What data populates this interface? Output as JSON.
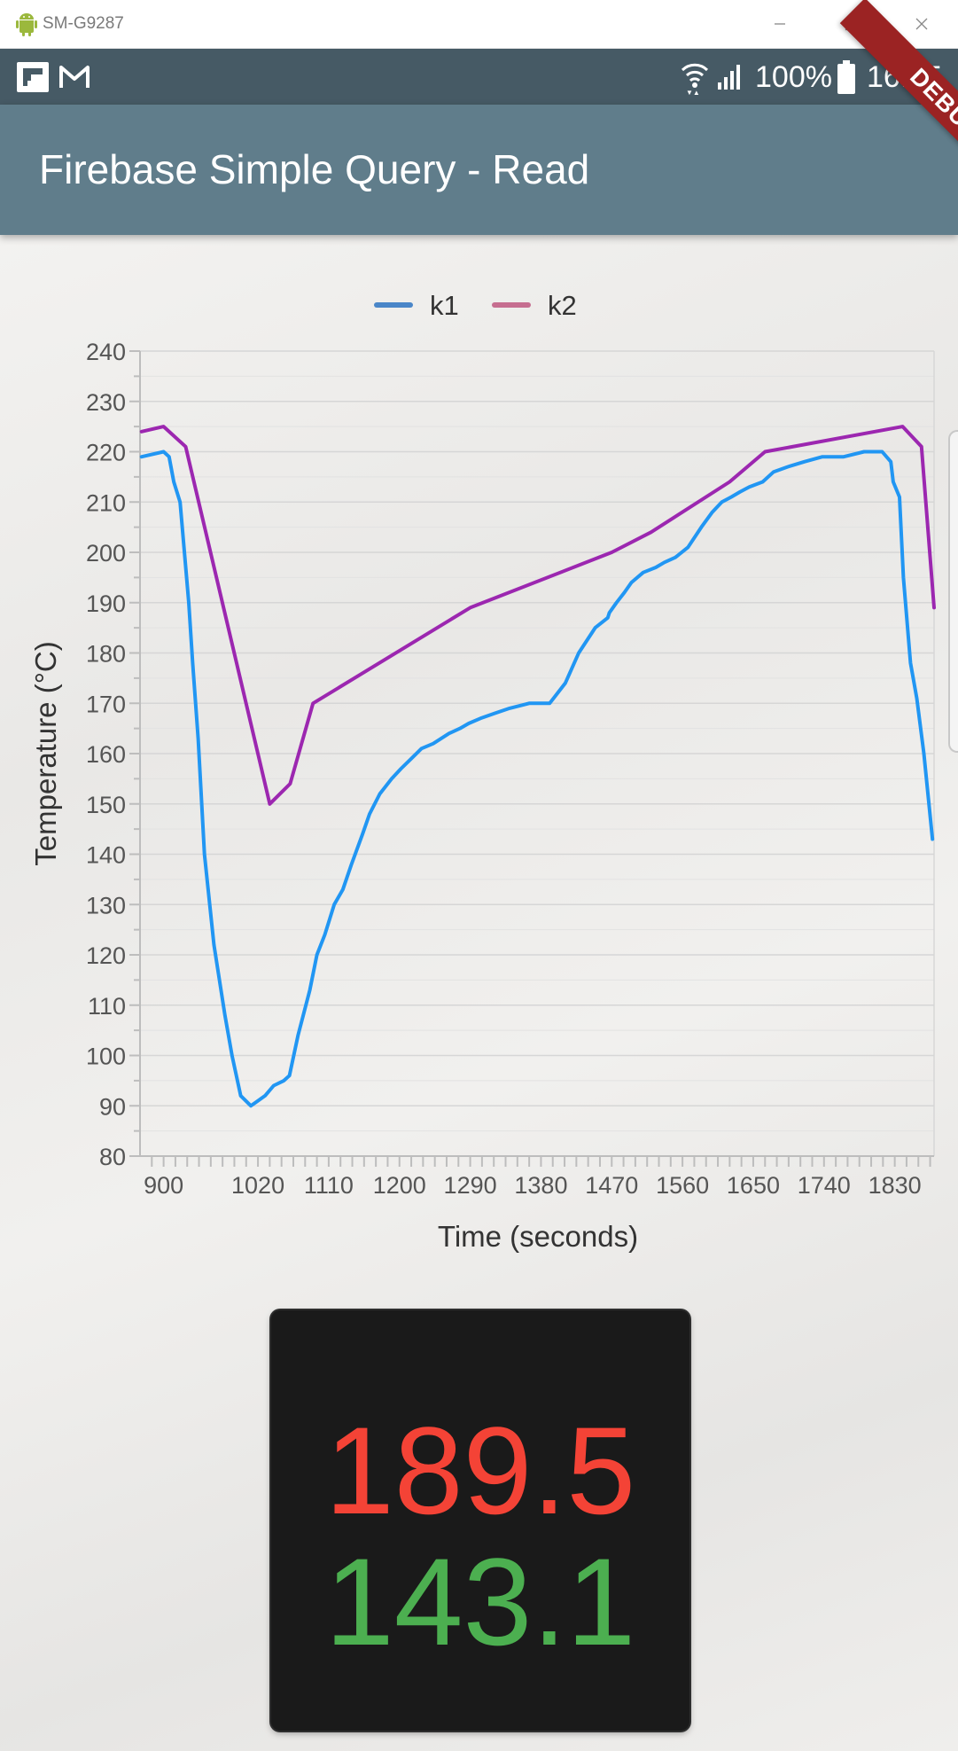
{
  "window": {
    "title": "SM-G9287"
  },
  "status_bar": {
    "battery": "100%",
    "time": "16:55"
  },
  "app_bar": {
    "title": "Firebase Simple Query - Read"
  },
  "debug_banner": "DEBUG",
  "chart_data": {
    "type": "line",
    "xlabel": "Time (seconds)",
    "ylabel": "Temperature (°C)",
    "xlim": [
      870,
      1880
    ],
    "ylim": [
      80,
      240
    ],
    "x_ticks": [
      900,
      1020,
      1110,
      1200,
      1290,
      1380,
      1470,
      1560,
      1650,
      1740,
      1830
    ],
    "y_ticks": [
      80,
      90,
      100,
      110,
      120,
      130,
      140,
      150,
      160,
      170,
      180,
      190,
      200,
      210,
      220,
      230,
      240
    ],
    "grid": true,
    "legend": "top-center",
    "series": [
      {
        "name": "k1",
        "color": "#2196f3",
        "legend_color": "#4a86c8",
        "x": [
          872,
          900,
          907,
          913,
          921,
          932,
          937,
          944,
          952,
          964,
          978,
          987,
          998,
          1011,
          1020,
          1029,
          1040,
          1053,
          1060,
          1071,
          1086,
          1095,
          1105,
          1117,
          1128,
          1139,
          1153,
          1162,
          1175,
          1190,
          1202,
          1215,
          1228,
          1243,
          1263,
          1277,
          1288,
          1303,
          1321,
          1340,
          1365,
          1391,
          1411,
          1428,
          1449,
          1465,
          1467,
          1476,
          1486,
          1495,
          1510,
          1526,
          1537,
          1551,
          1567,
          1584,
          1598,
          1610,
          1622,
          1633,
          1645,
          1662,
          1676,
          1694,
          1715,
          1738,
          1765,
          1791,
          1814,
          1825,
          1828,
          1836,
          1841,
          1850,
          1858,
          1867,
          1878
        ],
        "values": [
          219,
          220,
          219,
          214,
          210,
          190,
          178,
          163,
          140,
          122,
          108,
          100,
          92,
          90,
          91,
          92,
          94,
          95,
          96,
          104,
          113,
          120,
          124,
          130,
          133,
          138,
          144,
          148,
          152,
          155,
          157,
          159,
          161,
          162,
          164,
          165,
          166,
          167,
          168,
          169,
          170,
          170,
          174,
          180,
          185,
          187,
          188,
          190,
          192,
          194,
          196,
          197,
          198,
          199,
          201,
          205,
          208,
          210,
          211,
          212,
          213,
          214,
          216,
          217,
          218,
          219,
          219,
          220,
          220,
          218,
          214,
          211,
          195,
          178,
          171,
          160,
          143
        ]
      },
      {
        "name": "k2",
        "color": "#9c27b0",
        "legend_color": "#c66e90",
        "x": [
          872,
          900,
          928,
          1035,
          1061,
          1090,
          1290,
          1470,
          1520,
          1620,
          1665,
          1840,
          1864,
          1880
        ],
        "values": [
          224,
          225,
          221,
          150,
          154,
          170,
          189,
          200,
          204,
          214,
          220,
          225,
          221,
          189
        ]
      }
    ]
  },
  "readout": {
    "k1": "189.5",
    "k2": "143.1"
  }
}
